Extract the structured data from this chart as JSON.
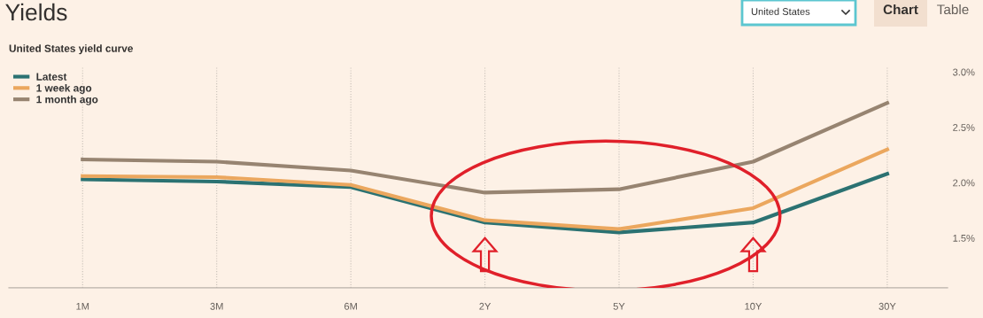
{
  "chart_data": {
    "type": "line",
    "title": "Yields",
    "subtitle": "United States yield curve",
    "annotations": [
      "United States",
      "Chart",
      "Table"
    ],
    "categories": [
      "1M",
      "3M",
      "6M",
      "2Y",
      "5Y",
      "10Y",
      "30Y"
    ],
    "series": [
      {
        "name": "Latest",
        "color": "#2b7272",
        "values": [
          2.03,
          2.01,
          1.96,
          1.64,
          1.55,
          1.64,
          2.08
        ]
      },
      {
        "name": "1 week ago",
        "color": "#eba75e",
        "values": [
          2.06,
          2.05,
          1.98,
          1.66,
          1.58,
          1.77,
          2.3
        ]
      },
      {
        "name": "1 month ago",
        "color": "#978471",
        "values": [
          2.21,
          2.19,
          2.11,
          1.91,
          1.94,
          2.19,
          2.72
        ]
      }
    ],
    "ylim": [
      1.05,
      3.05
    ],
    "yticks": [
      {
        "value": 1.5,
        "label": "1.5%"
      },
      {
        "value": 2.0,
        "label": "2.0%"
      },
      {
        "value": 2.5,
        "label": "2.5%"
      },
      {
        "value": 3.0,
        "label": "3.0%"
      }
    ],
    "grid": "x",
    "legend": "top left",
    "marker": "none",
    "line_style": "solid"
  }
}
